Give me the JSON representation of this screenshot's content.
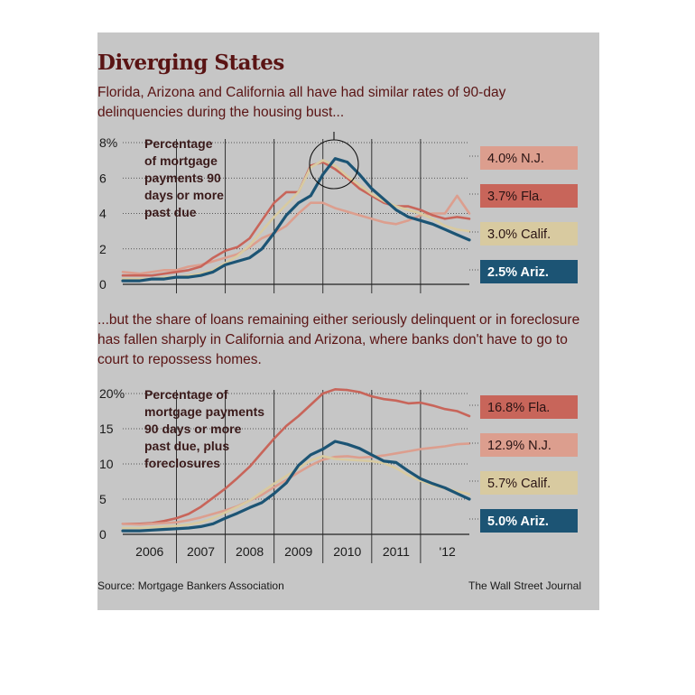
{
  "title": "Diverging States",
  "intro_top": "Florida, Arizona and California all have had similar rates of 90-day delinquencies during the housing bust...",
  "intro_bottom": "...but the share of loans remaining either seriously delinquent or in foreclosure has fallen sharply in California and Arizona, where banks don't have to go to court to repossess homes.",
  "source": "Source: Mortgage Bankers Association",
  "credit": "The Wall Street Journal",
  "colors": {
    "Fla.": "#c8655a",
    "N.J.": "#dc9e8e",
    "Calif.": "#d8caa0",
    "Ariz.": "#1c5474",
    "panel": "#c6c6c6",
    "title": "#5a1414"
  },
  "chart_data": [
    {
      "type": "line",
      "note": [
        "Percentage",
        "of mortgage",
        "payments 90",
        "days or more",
        "past due"
      ],
      "yticks": [
        "8%",
        "6",
        "4",
        "2",
        "0"
      ],
      "ylim": [
        0,
        8
      ],
      "xlim": [
        2005.4,
        2012.5
      ],
      "x_tick_labels": [
        "2006",
        "2007",
        "2008",
        "2009",
        "2010",
        "2011",
        "'12"
      ],
      "grid": true,
      "highlight": "circle around 2009 peak",
      "labels": [
        {
          "text": "4.0% N.J.",
          "series": "N.J."
        },
        {
          "text": "3.7% Fla.",
          "series": "Fla."
        },
        {
          "text": "3.0% Calif.",
          "series": "Calif."
        },
        {
          "text": "2.5% Ariz.",
          "series": "Ariz."
        }
      ],
      "x": [
        2005.4,
        2005.75,
        2006.0,
        2006.25,
        2006.5,
        2006.75,
        2007.0,
        2007.25,
        2007.5,
        2007.75,
        2008.0,
        2008.25,
        2008.5,
        2008.75,
        2009.0,
        2009.25,
        2009.5,
        2009.75,
        2010.0,
        2010.25,
        2010.5,
        2010.75,
        2011.0,
        2011.25,
        2011.5,
        2011.75,
        2012.0,
        2012.25,
        2012.5
      ],
      "series": [
        {
          "name": "N.J.",
          "values": [
            0.7,
            0.6,
            0.7,
            0.8,
            0.8,
            1.0,
            1.1,
            1.3,
            1.5,
            1.7,
            2.1,
            2.6,
            2.9,
            3.3,
            4.0,
            4.6,
            4.6,
            4.3,
            4.1,
            3.9,
            3.7,
            3.5,
            3.4,
            3.6,
            3.9,
            4.0,
            4.0,
            5.0,
            4.0
          ]
        },
        {
          "name": "Fla.",
          "values": [
            0.5,
            0.5,
            0.5,
            0.6,
            0.7,
            0.8,
            1.0,
            1.5,
            1.9,
            2.1,
            2.6,
            3.6,
            4.6,
            5.2,
            5.2,
            6.7,
            6.9,
            6.5,
            6.0,
            5.4,
            5.0,
            4.6,
            4.4,
            4.4,
            4.2,
            3.9,
            3.7,
            3.8,
            3.7
          ]
        },
        {
          "name": "Calif.",
          "values": [
            0.3,
            0.3,
            0.3,
            0.4,
            0.4,
            0.5,
            0.6,
            0.8,
            1.2,
            1.6,
            2.2,
            3.0,
            3.8,
            4.5,
            5.2,
            6.6,
            7.0,
            6.7,
            6.1,
            5.6,
            5.1,
            4.7,
            4.4,
            4.2,
            4.0,
            3.7,
            3.3,
            3.1,
            3.0
          ]
        },
        {
          "name": "Ariz.",
          "values": [
            0.2,
            0.2,
            0.3,
            0.3,
            0.4,
            0.4,
            0.5,
            0.7,
            1.1,
            1.3,
            1.5,
            2.0,
            2.9,
            3.9,
            4.6,
            5.0,
            6.2,
            7.1,
            6.9,
            6.2,
            5.4,
            4.8,
            4.2,
            3.8,
            3.6,
            3.4,
            3.1,
            2.8,
            2.5
          ]
        }
      ]
    },
    {
      "type": "line",
      "note": [
        "Percentage of",
        "mortgage payments",
        "90 days or more",
        "past due, plus",
        "foreclosures"
      ],
      "yticks": [
        "20%",
        "15",
        "10",
        "5",
        "0"
      ],
      "ylim": [
        0,
        20
      ],
      "xlim": [
        2005.4,
        2012.5
      ],
      "x_tick_labels": [
        "2006",
        "2007",
        "2008",
        "2009",
        "2010",
        "2011",
        "'12"
      ],
      "grid": true,
      "labels": [
        {
          "text": "16.8% Fla.",
          "series": "Fla."
        },
        {
          "text": "12.9% N.J.",
          "series": "N.J."
        },
        {
          "text": "5.7% Calif.",
          "series": "Calif."
        },
        {
          "text": "5.0% Ariz.",
          "series": "Ariz."
        }
      ],
      "x": [
        2005.4,
        2005.75,
        2006.0,
        2006.25,
        2006.5,
        2006.75,
        2007.0,
        2007.25,
        2007.5,
        2007.75,
        2008.0,
        2008.25,
        2008.5,
        2008.75,
        2009.0,
        2009.25,
        2009.5,
        2009.75,
        2010.0,
        2010.25,
        2010.5,
        2010.75,
        2011.0,
        2011.25,
        2011.5,
        2011.75,
        2012.0,
        2012.25,
        2012.5
      ],
      "series": [
        {
          "name": "Fla.",
          "values": [
            1.5,
            1.5,
            1.6,
            1.9,
            2.3,
            2.9,
            3.9,
            5.2,
            6.5,
            8.0,
            9.6,
            11.6,
            13.6,
            15.4,
            16.8,
            18.4,
            20.0,
            20.6,
            20.5,
            20.2,
            19.6,
            19.2,
            19.0,
            18.6,
            18.7,
            18.3,
            17.8,
            17.5,
            16.8
          ]
        },
        {
          "name": "N.J.",
          "values": [
            1.5,
            1.4,
            1.5,
            1.6,
            1.7,
            2.0,
            2.4,
            2.9,
            3.4,
            4.0,
            4.8,
            5.6,
            6.7,
            7.7,
            8.8,
            9.8,
            10.6,
            11.0,
            11.1,
            10.9,
            11.0,
            11.2,
            11.5,
            11.8,
            12.1,
            12.3,
            12.5,
            12.8,
            12.9
          ]
        },
        {
          "name": "Calif.",
          "values": [
            0.9,
            0.9,
            1.0,
            1.1,
            1.2,
            1.4,
            1.7,
            2.3,
            3.1,
            3.9,
            4.8,
            6.0,
            7.2,
            8.3,
            9.4,
            10.5,
            11.1,
            10.7,
            10.6,
            10.5,
            10.4,
            10.1,
            9.4,
            8.4,
            7.6,
            7.0,
            6.5,
            6.1,
            5.7
          ]
        },
        {
          "name": "Ariz.",
          "values": [
            0.5,
            0.5,
            0.6,
            0.7,
            0.8,
            0.9,
            1.1,
            1.5,
            2.3,
            3.0,
            3.8,
            4.5,
            5.8,
            7.3,
            9.8,
            11.3,
            12.1,
            13.2,
            12.8,
            12.2,
            11.3,
            10.4,
            10.2,
            9.0,
            7.9,
            7.2,
            6.6,
            5.8,
            5.0
          ]
        }
      ]
    }
  ]
}
